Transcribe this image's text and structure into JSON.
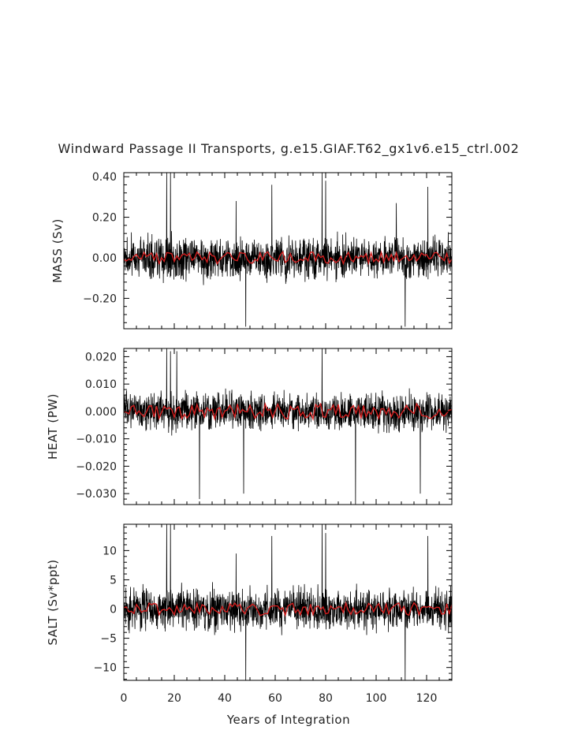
{
  "chart_data": {
    "type": "line",
    "title": "Windward Passage II Transports, g.e15.GIAF.T62_gx1v6.e15_ctrl.002",
    "xlabel": "Years of Integration",
    "xlim": [
      0,
      130
    ],
    "x_ticks": [
      "0",
      "20",
      "40",
      "60",
      "80",
      "100",
      "120"
    ],
    "colors": {
      "raw": "#000000",
      "smooth": "#d21e1e"
    },
    "panels": [
      {
        "ylabel": "MASS (Sv)",
        "ylim": [
          -0.35,
          0.42
        ],
        "y_ticks": [
          {
            "value": 0.4,
            "label": "0.40"
          },
          {
            "value": 0.2,
            "label": "0.20"
          },
          {
            "value": 0.0,
            "label": "0.00"
          },
          {
            "value": -0.2,
            "label": "−0.20"
          }
        ],
        "spikes": [
          {
            "x": 17.0,
            "y": 0.42
          },
          {
            "x": 18.5,
            "y": 0.42
          },
          {
            "x": 44.5,
            "y": 0.28
          },
          {
            "x": 58.7,
            "y": 0.36
          },
          {
            "x": 78.6,
            "y": 0.42
          },
          {
            "x": 80.0,
            "y": 0.38
          },
          {
            "x": 108.0,
            "y": 0.27
          },
          {
            "x": 120.5,
            "y": 0.35
          },
          {
            "x": 48.3,
            "y": -0.34
          },
          {
            "x": 111.5,
            "y": -0.34
          }
        ],
        "scale": 0.085,
        "smooth_amp": 0.03
      },
      {
        "ylabel": "HEAT (PW)",
        "ylim": [
          -0.034,
          0.023
        ],
        "y_ticks": [
          {
            "value": 0.02,
            "label": "0.020"
          },
          {
            "value": 0.01,
            "label": "0.010"
          },
          {
            "value": 0.0,
            "label": "0.000"
          },
          {
            "value": -0.01,
            "label": "−0.010"
          },
          {
            "value": -0.02,
            "label": "−0.020"
          },
          {
            "value": -0.03,
            "label": "−0.030"
          }
        ],
        "spikes": [
          {
            "x": 17.0,
            "y": 0.023
          },
          {
            "x": 18.5,
            "y": 0.022
          },
          {
            "x": 21.0,
            "y": 0.022
          },
          {
            "x": 78.6,
            "y": 0.023
          },
          {
            "x": 30.0,
            "y": -0.032
          },
          {
            "x": 47.5,
            "y": -0.03
          },
          {
            "x": 91.8,
            "y": -0.034
          },
          {
            "x": 117.5,
            "y": -0.03
          }
        ],
        "scale": 0.0055,
        "smooth_amp": 0.0028
      },
      {
        "ylabel": "SALT (Sv*ppt)",
        "ylim": [
          -12.2,
          14.5
        ],
        "y_ticks": [
          {
            "value": 10,
            "label": "10"
          },
          {
            "value": 5,
            "label": "5"
          },
          {
            "value": 0,
            "label": "0"
          },
          {
            "value": -5,
            "label": "−5"
          },
          {
            "value": -10,
            "label": "−10"
          }
        ],
        "spikes": [
          {
            "x": 17.0,
            "y": 14.5
          },
          {
            "x": 18.5,
            "y": 14.5
          },
          {
            "x": 44.5,
            "y": 9.5
          },
          {
            "x": 58.7,
            "y": 12.5
          },
          {
            "x": 78.6,
            "y": 14.5
          },
          {
            "x": 80.0,
            "y": 13.0
          },
          {
            "x": 120.5,
            "y": 12.5
          },
          {
            "x": 48.3,
            "y": -12.2
          },
          {
            "x": 111.5,
            "y": -12.2
          }
        ],
        "scale": 2.9,
        "smooth_amp": 1.1
      }
    ]
  }
}
